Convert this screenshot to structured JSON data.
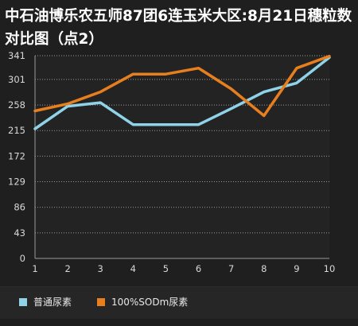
{
  "chart_data": {
    "type": "line",
    "title": "中石油博乐农五师87团6连玉米大区:8月21日穗粒数对比图（点2）",
    "xlabel": "",
    "ylabel": "",
    "x": [
      1,
      2,
      3,
      4,
      5,
      6,
      7,
      8,
      9,
      10
    ],
    "x_tick_labels": [
      "1",
      "2",
      "3",
      "4",
      "5",
      "6",
      "7",
      "8",
      "9",
      "10"
    ],
    "y_ticks": [
      0,
      43,
      86,
      129,
      172,
      215,
      258,
      301,
      341
    ],
    "y_tick_labels": [
      "0",
      "43",
      "86",
      "129",
      "172",
      "215",
      "258",
      "301",
      "341"
    ],
    "ylim": [
      0,
      341
    ],
    "xlim": [
      1,
      10
    ],
    "grid": "horizontal-dashed",
    "legend_position": "bottom",
    "series": [
      {
        "name": "普通尿素",
        "color": "#8fd3e8",
        "values": [
          218,
          256,
          262,
          225,
          225,
          225,
          252,
          280,
          295,
          338
        ]
      },
      {
        "name": "100%SODm尿素",
        "color": "#e87f1e",
        "values": [
          248,
          260,
          280,
          310,
          310,
          320,
          285,
          240,
          320,
          340
        ]
      }
    ]
  }
}
